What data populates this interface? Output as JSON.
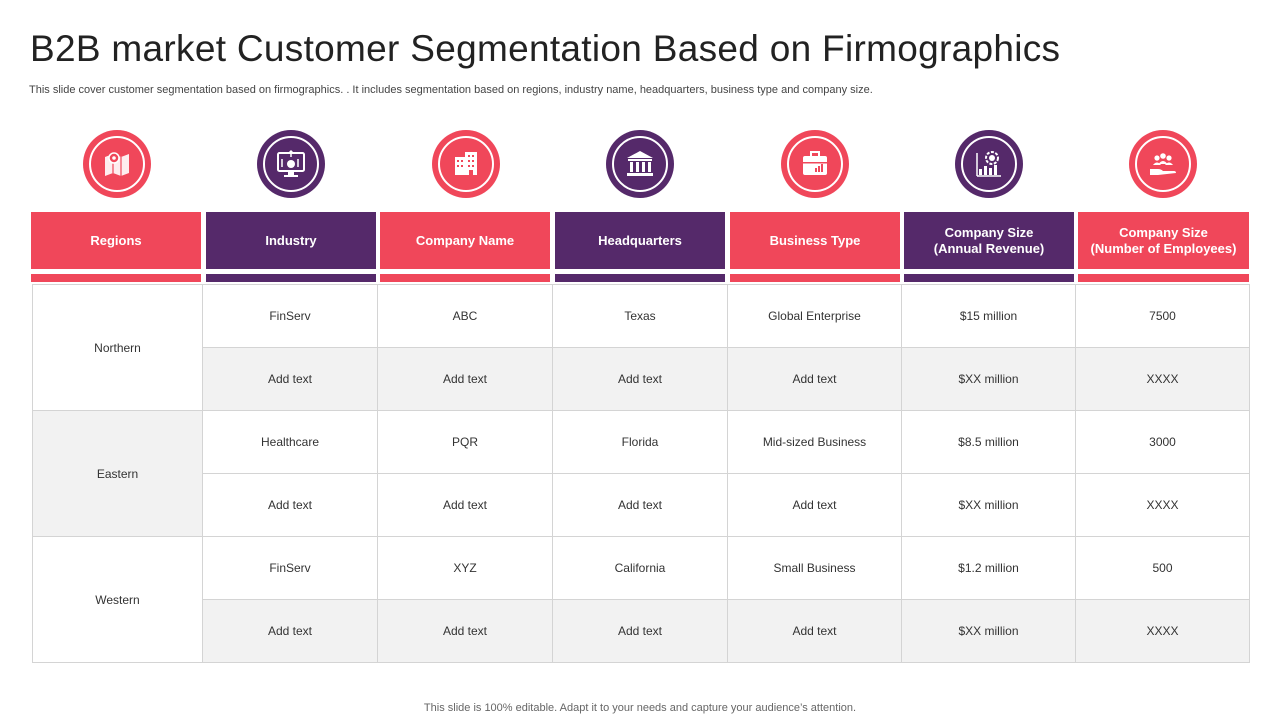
{
  "title": "B2B market Customer Segmentation Based on Firmographics",
  "subtitle": "This slide cover customer segmentation based on firmographics. . It includes segmentation based on regions, industry name, headquarters, business type and company size.",
  "columns": [
    {
      "label": "Regions",
      "color": "#f0475a",
      "icon": "map-pin-icon"
    },
    {
      "label": "Industry",
      "color": "#55296a",
      "icon": "monitor-dollar-icon"
    },
    {
      "label": "Company Name",
      "color": "#f0475a",
      "icon": "office-building-icon"
    },
    {
      "label": "Headquarters",
      "color": "#55296a",
      "icon": "bank-building-icon"
    },
    {
      "label": "Business  Type",
      "color": "#f0475a",
      "icon": "briefcase-chart-icon"
    },
    {
      "label": "Company Size\n(Annual Revenue)",
      "color": "#55296a",
      "icon": "revenue-growth-icon"
    },
    {
      "label": "Company Size\n(Number of Employees)",
      "color": "#f0475a",
      "icon": "team-hand-icon"
    }
  ],
  "rows": [
    {
      "region": "Northern",
      "entries": [
        [
          "FinServ",
          "ABC",
          "Texas",
          "Global Enterprise",
          "$15 million",
          "7500"
        ],
        [
          "Add text",
          "Add text",
          "Add text",
          "Add text",
          "$XX  million",
          "XXXX"
        ]
      ]
    },
    {
      "region": "Eastern",
      "entries": [
        [
          "Healthcare",
          "PQR",
          "Florida",
          "Mid-sized Business",
          "$8.5 million",
          "3000"
        ],
        [
          "Add text",
          "Add text",
          "Add text",
          "Add text",
          "$XX  million",
          "XXXX"
        ]
      ]
    },
    {
      "region": "Western",
      "entries": [
        [
          "FinServ",
          "XYZ",
          "California",
          "Small Business",
          "$1.2 million",
          "500"
        ],
        [
          "Add text",
          "Add text",
          "Add text",
          "Add text",
          "$XX  million",
          "XXXX"
        ]
      ]
    }
  ],
  "footer": "This slide is 100% editable. Adapt it to your needs and capture your audience’s attention."
}
